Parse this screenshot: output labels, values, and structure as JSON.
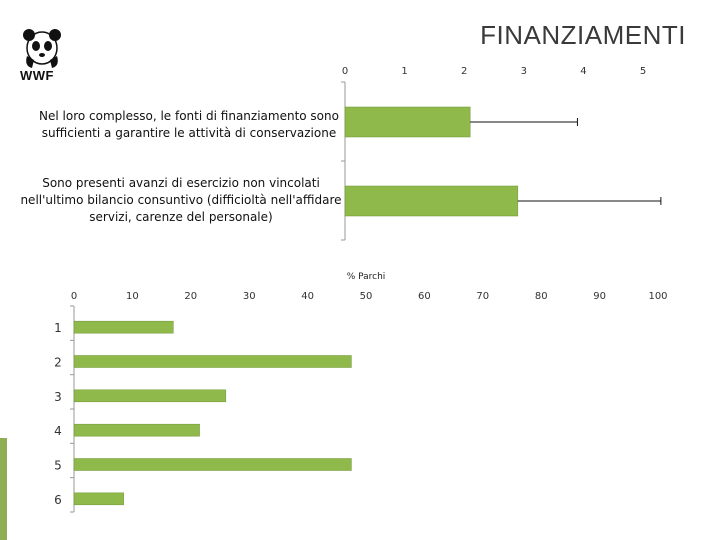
{
  "slide": {
    "title": "FINANZIAMENTI",
    "logo_text": "WWF"
  },
  "colors": {
    "bar_fill": "#8fb94a",
    "bar_stroke": "#6f9434",
    "accent": "#8fae54",
    "axis": "#999999"
  },
  "chart_data": [
    {
      "type": "bar",
      "orientation": "horizontal",
      "categories": [
        "Nel loro complesso, le fonti di finanziamento sono sufficienti a garantire le attività di conservazione",
        "Sono presenti avanzi di esercizio non vincolati nell'ultimo bilancio consuntivo (difficioltà nell'affidare servizi, carenze del personale)"
      ],
      "category_lines": [
        [
          "Nel loro complesso, le fonti di finanziamento sono",
          "sufficienti a garantire le attività di conservazione"
        ],
        [
          "Sono presenti avanzi di esercizio non vincolati",
          "nell'ultimo bilancio consuntivo (difficioltà nell'affidare",
          "servizi, carenze del personale)"
        ]
      ],
      "values": [
        2.1,
        2.9
      ],
      "error_upper": [
        3.9,
        5.3
      ],
      "xlim": [
        0,
        5
      ],
      "xticks": [
        "0",
        "1",
        "2",
        "3",
        "4",
        "5"
      ],
      "xlabel": "",
      "ylabel": "",
      "grid": false
    },
    {
      "type": "bar",
      "orientation": "horizontal",
      "categories": [
        "1",
        "2",
        "3",
        "4",
        "5",
        "6"
      ],
      "values": [
        17,
        47.5,
        26,
        21.5,
        47.5,
        8.5
      ],
      "xlim": [
        0,
        100
      ],
      "xticks": [
        "0",
        "10",
        "20",
        "30",
        "40",
        "50",
        "60",
        "70",
        "80",
        "90",
        "100"
      ],
      "xlabel": "% Parchi",
      "ylabel": "",
      "grid": false
    }
  ]
}
